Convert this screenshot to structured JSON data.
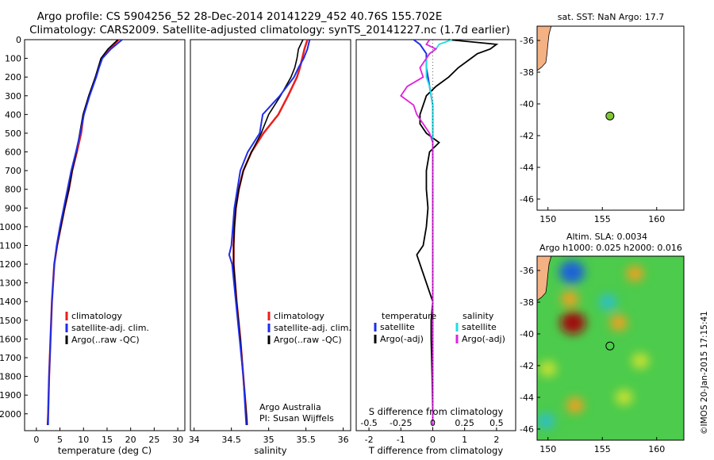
{
  "title_line1": "Argo profile: CS 5904256_52 28-Dec-2014 20141229_452 40.76S 155.702E",
  "title_line2": "Climatology: CARS2009. Satellite-adjusted climatology: synTS_20141227.nc (1.7d earlier)",
  "watermark": "©IMOS 20-Jan-2015 17:15:41",
  "credit_line1": "Argo Australia",
  "credit_line2": "PI: Susan Wijffels",
  "sst_title": "sat. SST: NaN Argo: 17.7",
  "sla_title_line1": "Altim. SLA: 0.0034",
  "sla_title_line2": "Argo h1000: 0.025 h2000: 0.016",
  "legend_temp": {
    "clim": "climatology",
    "sat": "satellite-adj. clim.",
    "argo": "Argo(..raw -QC)"
  },
  "legend_sal": {
    "clim": "climatology",
    "sat": "satellite-adj. clim.",
    "argo": "Argo(..raw -QC)"
  },
  "legend_diff": {
    "t_head": "temperature",
    "s_head": "salinity",
    "sat": "satellite",
    "argo": "Argo(-adj)"
  },
  "colors": {
    "clim": "#e8201c",
    "sat": "#1f2ee8",
    "argo": "#000000",
    "t_sat": "#1f2ee8",
    "s_sat": "#22dde0",
    "s_argo": "#e020e0",
    "land": "#f4b183",
    "float": "#7ec832"
  },
  "chart_data": [
    {
      "type": "line",
      "xlabel": "temperature (deg C)",
      "ylabel": "",
      "xlim": [
        -2.5,
        31.5
      ],
      "ylim": [
        2090,
        0
      ],
      "xticks": [
        "0",
        "5",
        "10",
        "15",
        "20",
        "25",
        "30"
      ],
      "yticks": [
        "0",
        "100",
        "200",
        "300",
        "400",
        "500",
        "600",
        "700",
        "800",
        "900",
        "1000",
        "1100",
        "1200",
        "1300",
        "1400",
        "1500",
        "1600",
        "1700",
        "1800",
        "1900",
        "2000"
      ],
      "y": [
        0,
        50,
        100,
        150,
        200,
        300,
        400,
        500,
        600,
        700,
        800,
        900,
        1000,
        1100,
        1200,
        1400,
        1600,
        1800,
        2000,
        2060
      ],
      "series": [
        {
          "name": "climatology",
          "values": [
            17.5,
            15.4,
            13.8,
            13.2,
            12.6,
            11.2,
            10.0,
            9.5,
            8.6,
            7.6,
            6.9,
            6.0,
            5.2,
            4.4,
            3.8,
            3.3,
            3.0,
            2.7,
            2.5,
            2.4
          ]
        },
        {
          "name": "satellite-adj. clim.",
          "values": [
            17.3,
            15.2,
            13.7,
            13.1,
            12.5,
            11.1,
            9.9,
            9.2,
            8.5,
            7.6,
            6.9,
            6.0,
            5.2,
            4.4,
            3.8,
            3.3,
            3.0,
            2.7,
            2.5,
            2.4
          ]
        },
        {
          "name": "Argo(..raw -QC)",
          "values": [
            18.2,
            15.8,
            14.0,
            13.3,
            12.7,
            11.3,
            10.1,
            9.3,
            8.4,
            7.4,
            6.6,
            5.8,
            5.0,
            4.3,
            3.8,
            3.3,
            3.0,
            2.7,
            2.5,
            2.5
          ]
        }
      ]
    },
    {
      "type": "line",
      "xlabel": "salinity",
      "ylabel": "",
      "xlim": [
        33.95,
        36.1
      ],
      "ylim": [
        2090,
        0
      ],
      "xticks": [
        "34",
        "34.5",
        "35",
        "35.5",
        "36"
      ],
      "y": [
        0,
        50,
        100,
        150,
        200,
        300,
        400,
        500,
        600,
        700,
        800,
        900,
        1000,
        1100,
        1150,
        1200,
        1400,
        1600,
        1800,
        2000,
        2060
      ],
      "series": [
        {
          "name": "climatology",
          "values": [
            35.52,
            35.48,
            35.45,
            35.42,
            35.38,
            35.26,
            35.13,
            34.93,
            34.77,
            34.66,
            34.6,
            34.56,
            34.54,
            34.53,
            34.53,
            34.53,
            34.57,
            34.62,
            34.66,
            34.7,
            34.71
          ]
        },
        {
          "name": "satellite-adj. clim.",
          "values": [
            35.46,
            35.4,
            35.38,
            35.35,
            35.3,
            35.16,
            35.0,
            34.9,
            34.77,
            34.66,
            34.6,
            34.56,
            34.54,
            34.53,
            34.53,
            34.53,
            34.57,
            34.62,
            34.66,
            34.7,
            34.71
          ]
        },
        {
          "name": "Argo(..raw -QC)",
          "values": [
            35.55,
            35.52,
            35.47,
            35.4,
            35.34,
            35.15,
            34.92,
            34.88,
            34.72,
            34.62,
            34.58,
            34.54,
            34.52,
            34.5,
            34.47,
            34.51,
            34.56,
            34.61,
            34.66,
            34.69,
            34.7
          ]
        }
      ]
    },
    {
      "type": "line",
      "xlabel": "T difference from climatology",
      "xlabel2": "S difference from climatology",
      "xlim": [
        -2.4,
        2.6
      ],
      "ylim": [
        2090,
        0
      ],
      "xticks": [
        "-2",
        "-1",
        "0",
        "1",
        "2"
      ],
      "x2ticks": [
        "-0.5",
        "-0.25",
        "0",
        "0.25",
        "0.5"
      ],
      "y": [
        0,
        25,
        50,
        75,
        100,
        150,
        200,
        250,
        300,
        350,
        400,
        450,
        500,
        550,
        600,
        700,
        800,
        900,
        1000,
        1100,
        1150,
        1200,
        1300,
        1400,
        1500,
        1600,
        1800,
        2000,
        2060
      ],
      "series": [
        {
          "name": "temperature Argo(-adj)",
          "values": [
            0.5,
            2.0,
            1.8,
            1.4,
            1.2,
            0.8,
            0.5,
            0.1,
            -0.2,
            -0.3,
            -0.4,
            -0.4,
            -0.2,
            0.2,
            -0.1,
            -0.2,
            -0.2,
            -0.15,
            -0.2,
            -0.3,
            -0.5,
            -0.4,
            -0.2,
            0.0,
            -0.05,
            -0.05,
            -0.02,
            0.0,
            0.0
          ]
        },
        {
          "name": "temperature satellite",
          "values": [
            -0.6,
            -0.4,
            -0.3,
            -0.2,
            -0.2,
            -0.2,
            -0.15,
            -0.1,
            -0.05,
            0.0,
            0.0,
            0.0,
            0.0,
            0.0,
            0.0,
            0.0,
            0.0,
            0.0,
            0.0,
            0.0,
            0.0,
            0.0,
            0.0,
            0.0,
            0.0,
            0.0,
            0.0,
            0.0,
            0.0
          ]
        },
        {
          "name": "salinity satellite",
          "values": [
            0.6,
            0.2,
            0.1,
            -0.1,
            -0.2,
            -0.2,
            -0.2,
            -0.1,
            -0.05,
            0.0,
            0.0,
            0.0,
            0.0,
            0.0,
            0.0,
            0.0,
            0.0,
            0.0,
            0.0,
            0.0,
            0.0,
            0.0,
            0.0,
            0.0,
            0.0,
            0.0,
            0.0,
            0.0,
            0.0
          ]
        },
        {
          "name": "salinity Argo(-adj)",
          "values": [
            -0.1,
            -0.2,
            0.1,
            -0.1,
            -0.2,
            -0.4,
            -0.3,
            -0.8,
            -1.0,
            -0.6,
            -0.5,
            -0.3,
            -0.1,
            0.0,
            0.0,
            0.0,
            0.0,
            0.0,
            0.0,
            0.0,
            0.0,
            0.0,
            0.0,
            0.0,
            0.0,
            0.0,
            0.0,
            0.0,
            0.0
          ]
        }
      ]
    },
    {
      "type": "scatter",
      "title": "sat. SST: NaN Argo: 17.7",
      "xlim": [
        149,
        162.5
      ],
      "ylim": [
        -46.7,
        -35.1
      ],
      "xticks": [
        "150",
        "155",
        "160"
      ],
      "yticks": [
        "-36",
        "-38",
        "-40",
        "-42",
        "-44",
        "-46"
      ],
      "points": [
        {
          "x": 155.702,
          "y": -40.76
        }
      ]
    },
    {
      "type": "heatmap",
      "title": "Altim. SLA: 0.0034",
      "xlim": [
        149,
        162.5
      ],
      "ylim": [
        -46.7,
        -35.1
      ],
      "xticks": [
        "150",
        "155",
        "160"
      ],
      "yticks": [
        "-36",
        "-38",
        "-40",
        "-42",
        "-44",
        "-46"
      ],
      "points": [
        {
          "x": 155.702,
          "y": -40.76
        }
      ],
      "features": [
        {
          "x": 152.2,
          "y": -36.1,
          "value": -0.3
        },
        {
          "x": 152.3,
          "y": -39.3,
          "value": 0.4
        },
        {
          "x": 155.5,
          "y": -38.0,
          "value": -0.2
        },
        {
          "x": 158.0,
          "y": -36.2,
          "value": 0.25
        },
        {
          "x": 156.5,
          "y": -39.3,
          "value": 0.2
        },
        {
          "x": 152.0,
          "y": -37.8,
          "value": 0.15
        },
        {
          "x": 158.5,
          "y": -41.7,
          "value": 0.1
        },
        {
          "x": 152.5,
          "y": -44.5,
          "value": 0.15
        },
        {
          "x": 150.0,
          "y": -42.2,
          "value": 0.12
        },
        {
          "x": 149.8,
          "y": -45.5,
          "value": -0.15
        },
        {
          "x": 157.0,
          "y": -44.0,
          "value": 0.12
        }
      ]
    }
  ]
}
